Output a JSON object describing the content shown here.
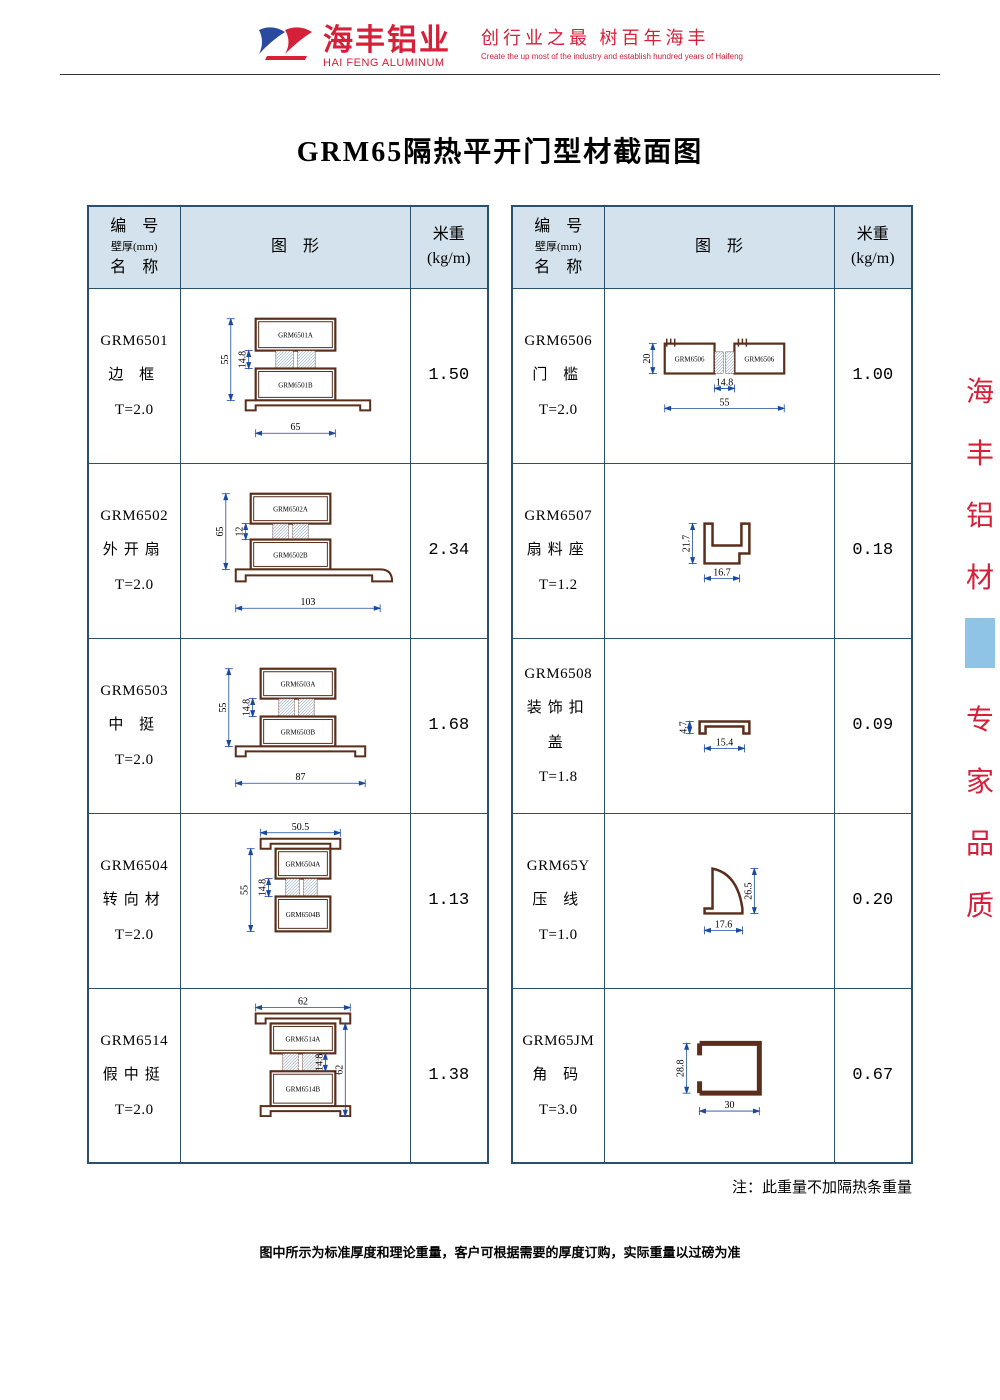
{
  "header": {
    "company_cn": "海丰铝业",
    "company_en": "HAI FENG ALUMINUM",
    "slogan_cn": "创行业之最  树百年海丰",
    "slogan_en": "Create the up most of the industry and establish hundred years of Haifeng",
    "logo_colors": {
      "blue": "#2a4aa0",
      "red": "#d6203a"
    }
  },
  "title": "GRM65隔热平开门型材截面图",
  "table_headers": {
    "col1_line1": "编　号",
    "col1_line2": "壁厚(mm)",
    "col1_line3": "名　称",
    "col2": "图　形",
    "col3_line1": "米重",
    "col3_line2": "(kg/m)"
  },
  "colors": {
    "border": "#2b506e",
    "header_bg": "#d3e2ec",
    "profile_stroke": "#5a2e1a",
    "dim_stroke": "#1a4aa0",
    "hatch": "#9aaec0"
  },
  "left_rows": [
    {
      "code": "GRM6501",
      "name": "边 框",
      "thickness": "T=2.0",
      "weight": "1.50",
      "dims": {
        "w": "65",
        "h": "55",
        "gap": "14.8"
      },
      "labels": [
        "GRM6501A",
        "GRM6501B"
      ],
      "shape": "frame"
    },
    {
      "code": "GRM6502",
      "name": "外开扇",
      "thickness": "T=2.0",
      "weight": "2.34",
      "dims": {
        "w": "103",
        "h": "65",
        "gap": "12"
      },
      "labels": [
        "GRM6502A",
        "GRM6502B"
      ],
      "shape": "sash"
    },
    {
      "code": "GRM6503",
      "name": "中 挺",
      "thickness": "T=2.0",
      "weight": "1.68",
      "dims": {
        "w": "87",
        "h": "55",
        "gap": "14.8"
      },
      "labels": [
        "GRM6503A",
        "GRM6503B"
      ],
      "shape": "mullion"
    },
    {
      "code": "GRM6504",
      "name": "转向材",
      "thickness": "T=2.0",
      "weight": "1.13",
      "dims": {
        "w": "50.5",
        "h": "55",
        "gap": "14.8"
      },
      "labels": [
        "GRM6504A",
        "GRM6504B"
      ],
      "shape": "corner"
    },
    {
      "code": "GRM6514",
      "name": "假中挺",
      "thickness": "T=2.0",
      "weight": "1.38",
      "dims": {
        "w": "62",
        "h": "62",
        "gap": "14.8"
      },
      "labels": [
        "GRM6514A",
        "GRM6514B"
      ],
      "shape": "fake_mullion"
    }
  ],
  "right_rows": [
    {
      "code": "GRM6506",
      "name": "门 槛",
      "thickness": "T=2.0",
      "weight": "1.00",
      "dims": {
        "w": "55",
        "h": "20",
        "gap": "14.8"
      },
      "labels": [
        "GRM6506",
        "GRM6506"
      ],
      "shape": "sill"
    },
    {
      "code": "GRM6507",
      "name": "扇料座",
      "thickness": "T=1.2",
      "weight": "0.18",
      "dims": {
        "w": "16.7",
        "h": "21.7"
      },
      "shape": "seat"
    },
    {
      "code": "GRM6508",
      "name": "装饰扣盖",
      "thickness": "T=1.8",
      "weight": "0.09",
      "dims": {
        "w": "15.4",
        "h": "4.7"
      },
      "shape": "cover"
    },
    {
      "code": "GRM65Y",
      "name": "压 线",
      "thickness": "T=1.0",
      "weight": "0.20",
      "dims": {
        "w": "17.6",
        "h": "26.5"
      },
      "shape": "bead"
    },
    {
      "code": "GRM65JM",
      "name": "角 码",
      "thickness": "T=3.0",
      "weight": "0.67",
      "dims": {
        "w": "30",
        "h": "28.8"
      },
      "shape": "bracket"
    }
  ],
  "footnote_right": "注：此重量不加隔热条重量",
  "footnote_bottom": "图中所示为标准厚度和理论重量，客户可根据需要的厚度订购，实际重量以过磅为准",
  "side_text_top": [
    "海",
    "丰",
    "铝",
    "材"
  ],
  "side_text_bottom": [
    "专",
    "家",
    "品",
    "质"
  ]
}
